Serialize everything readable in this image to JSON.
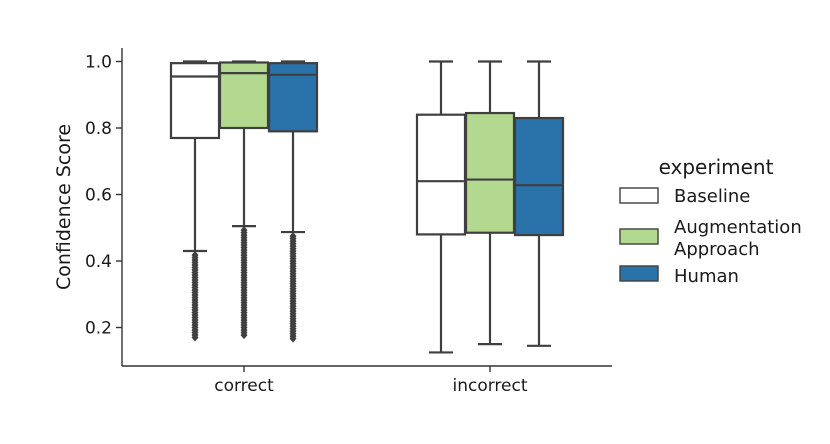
{
  "chart_data": {
    "type": "box",
    "title": "",
    "xlabel": "",
    "ylabel": "Confidence Score",
    "ylim": [
      0.1,
      1.04
    ],
    "yticks": [
      "0.2",
      "0.4",
      "0.6",
      "0.8",
      "1.0"
    ],
    "categories": [
      "correct",
      "incorrect"
    ],
    "legend": {
      "title": "experiment",
      "placement": "right"
    },
    "series": [
      {
        "name": "Baseline",
        "color": "#ffffff",
        "boxes": [
          {
            "whisker_low": 0.43,
            "q1": 0.77,
            "median": 0.955,
            "q3": 0.995,
            "whisker_high": 1.0,
            "outliers_from": 0.165,
            "outliers_to": 0.43
          },
          {
            "whisker_low": 0.125,
            "q1": 0.48,
            "median": 0.64,
            "q3": 0.84,
            "whisker_high": 1.0
          }
        ]
      },
      {
        "name": "Augmentation Approach",
        "color": "#b2d98f",
        "boxes": [
          {
            "whisker_low": 0.505,
            "q1": 0.8,
            "median": 0.965,
            "q3": 0.997,
            "whisker_high": 1.0,
            "outliers_from": 0.175,
            "outliers_to": 0.505
          },
          {
            "whisker_low": 0.15,
            "q1": 0.485,
            "median": 0.645,
            "q3": 0.845,
            "whisker_high": 1.0
          }
        ]
      },
      {
        "name": "Human",
        "color": "#2a72aa",
        "boxes": [
          {
            "whisker_low": 0.487,
            "q1": 0.79,
            "median": 0.96,
            "q3": 0.995,
            "whisker_high": 1.0,
            "outliers_from": 0.16,
            "outliers_to": 0.487
          },
          {
            "whisker_low": 0.145,
            "q1": 0.478,
            "median": 0.628,
            "q3": 0.83,
            "whisker_high": 1.0
          }
        ]
      }
    ]
  }
}
